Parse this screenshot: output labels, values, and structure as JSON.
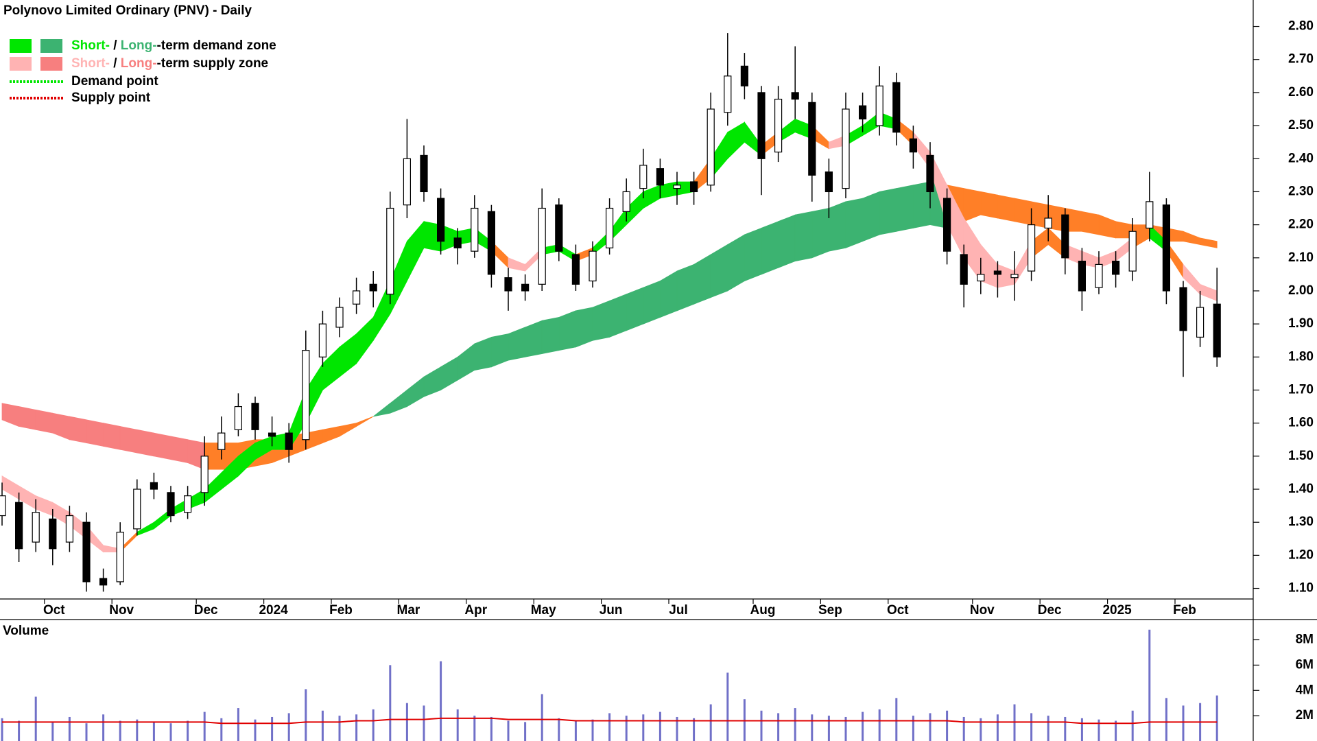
{
  "chart_data": {
    "type": "candlestick",
    "title": "Polynovo Limited Ordinary (PNV) - Daily",
    "legend": {
      "zones": [
        {
          "short": "Short-",
          "sep": " / ",
          "long": "Long-",
          "rest": "-term demand zone",
          "short_color": "#00e600",
          "long_color": "#3cb371"
        },
        {
          "short": "Short-",
          "sep": " / ",
          "long": "Long-",
          "rest": "-term supply zone",
          "short_color": "#ffb3b3",
          "long_color": "#f77f7f"
        }
      ],
      "points": [
        {
          "label": "Demand point",
          "color": "#00e600"
        },
        {
          "label": "Supply point",
          "color": "#e00000"
        }
      ]
    },
    "categories": [
      null,
      null,
      null,
      "Oct",
      null,
      null,
      null,
      "Nov",
      null,
      null,
      null,
      null,
      "Dec",
      null,
      null,
      null,
      "2024",
      null,
      null,
      null,
      "Feb",
      null,
      null,
      null,
      "Mar",
      null,
      null,
      null,
      "Apr",
      null,
      null,
      null,
      "May",
      null,
      null,
      null,
      "Jun",
      null,
      null,
      null,
      "Jul",
      null,
      null,
      null,
      null,
      "Aug",
      null,
      null,
      null,
      "Sep",
      null,
      null,
      null,
      "Oct",
      null,
      null,
      null,
      null,
      "Nov",
      null,
      null,
      null,
      "Dec",
      null,
      null,
      null,
      "2025",
      null,
      null,
      null,
      "Feb",
      null,
      null
    ],
    "open": [
      1.32,
      1.36,
      1.24,
      1.31,
      1.24,
      1.3,
      1.13,
      1.12,
      1.28,
      1.42,
      1.39,
      1.33,
      1.39,
      1.52,
      1.58,
      1.66,
      1.57,
      1.57,
      1.55,
      1.8,
      1.89,
      1.96,
      2.02,
      1.99,
      2.26,
      2.41,
      2.28,
      2.16,
      2.12,
      2.24,
      2.04,
      2.02,
      2.02,
      2.26,
      2.11,
      2.03,
      2.13,
      2.24,
      2.31,
      2.37,
      2.31,
      2.33,
      2.32,
      2.54,
      2.68,
      2.6,
      2.42,
      2.6,
      2.57,
      2.36,
      2.31,
      2.56,
      2.5,
      2.63,
      2.46,
      2.41,
      2.28,
      2.11,
      2.03,
      2.06,
      2.04,
      2.06,
      2.19,
      2.23,
      2.09,
      2.01,
      2.09,
      2.06,
      2.19,
      2.26,
      2.01,
      1.86,
      1.96
    ],
    "high": [
      1.42,
      1.39,
      1.37,
      1.34,
      1.35,
      1.33,
      1.16,
      1.3,
      1.43,
      1.45,
      1.41,
      1.41,
      1.56,
      1.62,
      1.69,
      1.68,
      1.62,
      1.6,
      1.88,
      1.94,
      1.98,
      2.04,
      2.06,
      2.3,
      2.52,
      2.44,
      2.31,
      2.19,
      2.29,
      2.26,
      2.07,
      2.05,
      2.31,
      2.28,
      2.14,
      2.15,
      2.28,
      2.34,
      2.43,
      2.4,
      2.36,
      2.36,
      2.6,
      2.78,
      2.72,
      2.62,
      2.62,
      2.74,
      2.6,
      2.4,
      2.6,
      2.6,
      2.68,
      2.66,
      2.5,
      2.45,
      2.31,
      2.14,
      2.1,
      2.09,
      2.12,
      2.25,
      2.29,
      2.25,
      2.13,
      2.12,
      2.12,
      2.22,
      2.36,
      2.28,
      2.03,
      2.0,
      2.07
    ],
    "low": [
      1.29,
      1.18,
      1.21,
      1.17,
      1.21,
      1.09,
      1.09,
      1.11,
      1.26,
      1.37,
      1.3,
      1.31,
      1.35,
      1.49,
      1.56,
      1.55,
      1.53,
      1.48,
      1.52,
      1.77,
      1.86,
      1.93,
      1.95,
      1.96,
      2.22,
      2.27,
      2.11,
      2.08,
      2.1,
      2.01,
      1.94,
      1.97,
      2.0,
      2.09,
      2.0,
      2.01,
      2.11,
      2.21,
      2.28,
      2.28,
      2.26,
      2.26,
      2.3,
      2.5,
      2.58,
      2.29,
      2.39,
      2.52,
      2.27,
      2.22,
      2.28,
      2.48,
      2.47,
      2.44,
      2.37,
      2.25,
      2.08,
      1.95,
      1.99,
      1.98,
      1.97,
      2.03,
      2.15,
      2.05,
      1.94,
      1.99,
      2.01,
      2.03,
      2.15,
      1.96,
      1.74,
      1.83,
      1.77
    ],
    "close": [
      1.38,
      1.22,
      1.33,
      1.22,
      1.32,
      1.12,
      1.11,
      1.27,
      1.4,
      1.4,
      1.32,
      1.38,
      1.5,
      1.57,
      1.65,
      1.58,
      1.56,
      1.52,
      1.82,
      1.9,
      1.95,
      2.0,
      2.0,
      2.25,
      2.4,
      2.3,
      2.15,
      2.13,
      2.25,
      2.05,
      2.0,
      2.0,
      2.25,
      2.12,
      2.02,
      2.12,
      2.25,
      2.3,
      2.38,
      2.32,
      2.32,
      2.3,
      2.55,
      2.65,
      2.62,
      2.4,
      2.58,
      2.58,
      2.35,
      2.3,
      2.55,
      2.52,
      2.62,
      2.48,
      2.42,
      2.3,
      2.12,
      2.02,
      2.05,
      2.05,
      2.05,
      2.2,
      2.22,
      2.1,
      2.0,
      2.08,
      2.05,
      2.18,
      2.27,
      2.0,
      1.88,
      1.95,
      1.8
    ],
    "up_color": "#ffffff",
    "down_color": "#000000",
    "zones": [
      {
        "upper": [
          1.66,
          1.65,
          1.64,
          1.63,
          1.62,
          1.61,
          1.6,
          1.59,
          1.58,
          1.57,
          1.56,
          1.55,
          1.54,
          1.54,
          1.54,
          1.55,
          1.55,
          1.56,
          1.57,
          1.58,
          1.59,
          1.6,
          1.62,
          1.66,
          1.7,
          1.74,
          1.77,
          1.8,
          1.84,
          1.86,
          1.87,
          1.89,
          1.91,
          1.92,
          1.94,
          1.95,
          1.97,
          1.99,
          2.01,
          2.03,
          2.06,
          2.08,
          2.11,
          2.14,
          2.17,
          2.19,
          2.21,
          2.23,
          2.24,
          2.25,
          2.27,
          2.28,
          2.3,
          2.31,
          2.32,
          2.33,
          2.32,
          2.31,
          2.3,
          2.29,
          2.28,
          2.27,
          2.26,
          2.25,
          2.24,
          2.23,
          2.21,
          2.2,
          2.2,
          2.19,
          2.18,
          2.16,
          2.15
        ],
        "lower": [
          1.61,
          1.59,
          1.58,
          1.57,
          1.55,
          1.54,
          1.53,
          1.52,
          1.51,
          1.5,
          1.49,
          1.48,
          1.46,
          1.46,
          1.46,
          1.47,
          1.48,
          1.5,
          1.52,
          1.54,
          1.56,
          1.59,
          1.62,
          1.63,
          1.65,
          1.68,
          1.7,
          1.73,
          1.76,
          1.77,
          1.79,
          1.8,
          1.81,
          1.82,
          1.83,
          1.85,
          1.86,
          1.88,
          1.9,
          1.92,
          1.94,
          1.96,
          1.98,
          2.0,
          2.03,
          2.05,
          2.07,
          2.09,
          2.1,
          2.12,
          2.13,
          2.15,
          2.17,
          2.18,
          2.19,
          2.2,
          2.19,
          2.21,
          2.23,
          2.22,
          2.21,
          2.2,
          2.19,
          2.18,
          2.18,
          2.17,
          2.16,
          2.16,
          2.16,
          2.15,
          2.15,
          2.14,
          2.13
        ],
        "colors": [
          "#f77f7f",
          "#f77f7f",
          "#f77f7f",
          "#f77f7f",
          "#f77f7f",
          "#f77f7f",
          "#f77f7f",
          "#f77f7f",
          "#f77f7f",
          "#f77f7f",
          "#f77f7f",
          "#f77f7f",
          "#ff7f27",
          "#ff7f27",
          "#ff7f27",
          "#ff7f27",
          "#ff7f27",
          "#ff7f27",
          "#ff7f27",
          "#ff7f27",
          "#ff7f27",
          "#ff7f27",
          "#3cb371",
          "#3cb371",
          "#3cb371",
          "#3cb371",
          "#3cb371",
          "#3cb371",
          "#3cb371",
          "#3cb371",
          "#3cb371",
          "#3cb371",
          "#3cb371",
          "#3cb371",
          "#3cb371",
          "#3cb371",
          "#3cb371",
          "#3cb371",
          "#3cb371",
          "#3cb371",
          "#3cb371",
          "#3cb371",
          "#3cb371",
          "#3cb371",
          "#3cb371",
          "#3cb371",
          "#3cb371",
          "#3cb371",
          "#3cb371",
          "#3cb371",
          "#3cb371",
          "#3cb371",
          "#3cb371",
          "#3cb371",
          "#3cb371",
          "#3cb371",
          "#ff7f27",
          "#ff7f27",
          "#ff7f27",
          "#ff7f27",
          "#ff7f27",
          "#ff7f27",
          "#ff7f27",
          "#ff7f27",
          "#ff7f27",
          "#ff7f27",
          "#ff7f27",
          "#ff7f27",
          "#ff7f27",
          "#ff7f27",
          "#ff7f27",
          "#ff7f27",
          "#ff7f27"
        ]
      },
      {
        "upper": [
          1.44,
          1.41,
          1.38,
          1.36,
          1.33,
          1.29,
          1.23,
          1.22,
          1.27,
          1.3,
          1.34,
          1.37,
          1.4,
          1.45,
          1.5,
          1.54,
          1.56,
          1.57,
          1.7,
          1.78,
          1.83,
          1.87,
          1.92,
          2.03,
          2.15,
          2.21,
          2.2,
          2.18,
          2.19,
          2.15,
          2.1,
          2.08,
          2.13,
          2.14,
          2.11,
          2.13,
          2.18,
          2.25,
          2.3,
          2.32,
          2.33,
          2.33,
          2.4,
          2.48,
          2.51,
          2.44,
          2.48,
          2.52,
          2.5,
          2.45,
          2.47,
          2.5,
          2.54,
          2.52,
          2.48,
          2.42,
          2.32,
          2.22,
          2.14,
          2.08,
          2.06,
          2.15,
          2.19,
          2.14,
          2.12,
          2.1,
          2.12,
          2.16,
          2.2,
          2.15,
          2.08,
          2.02,
          2.0
        ],
        "lower": [
          1.4,
          1.37,
          1.34,
          1.32,
          1.29,
          1.25,
          1.21,
          1.21,
          1.26,
          1.28,
          1.32,
          1.34,
          1.36,
          1.4,
          1.44,
          1.49,
          1.52,
          1.52,
          1.6,
          1.7,
          1.74,
          1.78,
          1.85,
          1.93,
          2.03,
          2.13,
          2.12,
          2.14,
          2.15,
          2.12,
          2.07,
          2.06,
          2.11,
          2.12,
          2.09,
          2.11,
          2.15,
          2.2,
          2.25,
          2.28,
          2.29,
          2.3,
          2.34,
          2.4,
          2.45,
          2.41,
          2.45,
          2.48,
          2.46,
          2.43,
          2.44,
          2.47,
          2.5,
          2.49,
          2.44,
          2.37,
          2.2,
          2.1,
          2.03,
          2.01,
          2.02,
          2.1,
          2.14,
          2.1,
          2.08,
          2.07,
          2.09,
          2.13,
          2.16,
          2.12,
          2.04,
          1.99,
          1.97
        ],
        "colors": [
          "#ffb3b3",
          "#ffb3b3",
          "#ffb3b3",
          "#ffb3b3",
          "#ffb3b3",
          "#ffb3b3",
          "#ffb3b3",
          "#ff7f27",
          "#00e600",
          "#00e600",
          "#00e600",
          "#00e600",
          "#00e600",
          "#00e600",
          "#00e600",
          "#00e600",
          "#00e600",
          "#00e600",
          "#00e600",
          "#00e600",
          "#00e600",
          "#00e600",
          "#00e600",
          "#00e600",
          "#00e600",
          "#00e600",
          "#00e600",
          "#00e600",
          "#00e600",
          "#ff7f27",
          "#ffb3b3",
          "#ffb3b3",
          "#00e600",
          "#00e600",
          "#ff7f27",
          "#00e600",
          "#00e600",
          "#00e600",
          "#00e600",
          "#00e600",
          "#00e600",
          "#ff7f27",
          "#00e600",
          "#00e600",
          "#00e600",
          "#ff7f27",
          "#00e600",
          "#00e600",
          "#ff7f27",
          "#ffb3b3",
          "#00e600",
          "#00e600",
          "#00e600",
          "#ff7f27",
          "#ffb3b3",
          "#ffb3b3",
          "#ffb3b3",
          "#ffb3b3",
          "#ffb3b3",
          "#ffb3b3",
          "#ffb3b3",
          "#ff7f27",
          "#ff7f27",
          "#ffb3b3",
          "#ffb3b3",
          "#ffb3b3",
          "#ffb3b3",
          "#ff7f27",
          "#00e600",
          "#ff7f27",
          "#ffb3b3",
          "#ffb3b3",
          "#ffb3b3"
        ]
      }
    ],
    "ylim": [
      1.07,
      2.88
    ],
    "yticks": [
      {
        "value": 1.1,
        "label": "1.10"
      },
      {
        "value": 1.2,
        "label": "1.20"
      },
      {
        "value": 1.3,
        "label": "1.30"
      },
      {
        "value": 1.4,
        "label": "1.40"
      },
      {
        "value": 1.5,
        "label": "1.50"
      },
      {
        "value": 1.6,
        "label": "1.60"
      },
      {
        "value": 1.7,
        "label": "1.70"
      },
      {
        "value": 1.8,
        "label": "1.80"
      },
      {
        "value": 1.9,
        "label": "1.90"
      },
      {
        "value": 2.0,
        "label": "2.00"
      },
      {
        "value": 2.1,
        "label": "2.10"
      },
      {
        "value": 2.2,
        "label": "2.20"
      },
      {
        "value": 2.3,
        "label": "2.30"
      },
      {
        "value": 2.4,
        "label": "2.40"
      },
      {
        "value": 2.5,
        "label": "2.50"
      },
      {
        "value": 2.6,
        "label": "2.60"
      },
      {
        "value": 2.7,
        "label": "2.70"
      },
      {
        "value": 2.8,
        "label": "2.80"
      }
    ],
    "volume": {
      "title": "Volume",
      "color": "#7070c8",
      "values": [
        1.8,
        1.6,
        3.5,
        1.5,
        1.9,
        1.4,
        2.1,
        1.6,
        1.7,
        1.5,
        1.4,
        1.6,
        2.3,
        1.8,
        2.6,
        1.7,
        1.9,
        2.2,
        4.1,
        2.4,
        2.0,
        2.1,
        2.5,
        6.0,
        3.0,
        2.8,
        6.3,
        2.5,
        2.0,
        1.9,
        1.6,
        1.5,
        3.7,
        1.8,
        1.6,
        1.7,
        2.2,
        2.0,
        2.1,
        2.3,
        1.9,
        1.8,
        2.9,
        5.4,
        3.3,
        2.4,
        2.2,
        2.6,
        2.1,
        2.0,
        1.9,
        2.3,
        2.5,
        3.4,
        2.0,
        2.2,
        2.4,
        1.9,
        1.8,
        2.1,
        2.9,
        2.2,
        2.0,
        1.9,
        1.8,
        1.7,
        1.6,
        2.4,
        8.8,
        3.4,
        2.8,
        3.0,
        3.6
      ],
      "average": [
        1.5,
        1.5,
        1.5,
        1.5,
        1.5,
        1.5,
        1.5,
        1.5,
        1.5,
        1.5,
        1.5,
        1.5,
        1.5,
        1.4,
        1.4,
        1.4,
        1.4,
        1.4,
        1.5,
        1.5,
        1.5,
        1.6,
        1.6,
        1.7,
        1.7,
        1.7,
        1.8,
        1.8,
        1.8,
        1.8,
        1.7,
        1.7,
        1.7,
        1.7,
        1.6,
        1.6,
        1.6,
        1.6,
        1.6,
        1.6,
        1.6,
        1.6,
        1.6,
        1.6,
        1.6,
        1.6,
        1.6,
        1.6,
        1.6,
        1.6,
        1.6,
        1.6,
        1.6,
        1.6,
        1.6,
        1.6,
        1.6,
        1.5,
        1.5,
        1.5,
        1.5,
        1.5,
        1.5,
        1.5,
        1.4,
        1.4,
        1.4,
        1.4,
        1.5,
        1.5,
        1.5,
        1.5,
        1.5
      ],
      "average_color": "#e00000",
      "ylim": [
        0,
        9.6
      ],
      "yticks": [
        {
          "value": 2,
          "label": "2M"
        },
        {
          "value": 4,
          "label": "4M"
        },
        {
          "value": 6,
          "label": "6M"
        },
        {
          "value": 8,
          "label": "8M"
        }
      ]
    }
  }
}
